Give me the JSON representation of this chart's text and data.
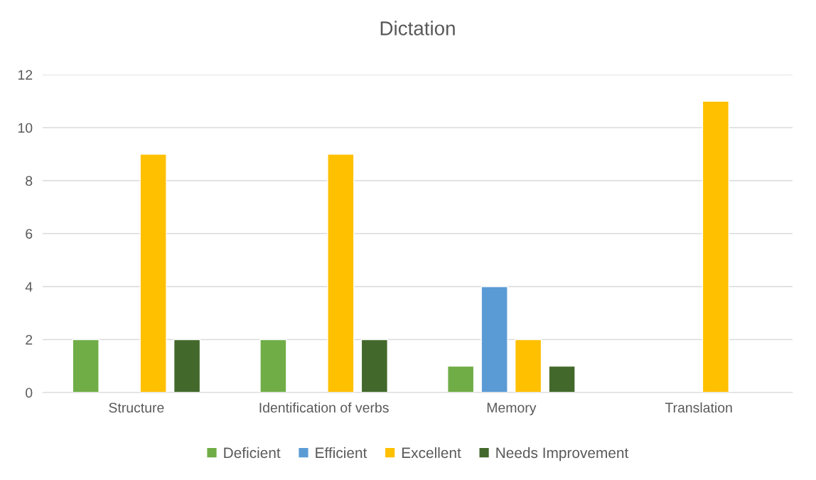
{
  "chart_data": {
    "type": "bar",
    "title": "Dictation",
    "categories": [
      "Structure",
      "Identification of verbs",
      "Memory",
      "Translation"
    ],
    "series": [
      {
        "name": "Deficient",
        "color": "#70ad47",
        "values": [
          2,
          2,
          1,
          null
        ]
      },
      {
        "name": "Efficient",
        "color": "#5b9bd5",
        "values": [
          null,
          null,
          4,
          null
        ]
      },
      {
        "name": "Excellent",
        "color": "#ffc000",
        "values": [
          9,
          9,
          2,
          11
        ]
      },
      {
        "name": "Needs Improvement",
        "color": "#43682b",
        "values": [
          2,
          2,
          1,
          null
        ]
      }
    ],
    "ylim": [
      0,
      12
    ],
    "yticks": [
      0,
      2,
      4,
      6,
      8,
      10,
      12
    ],
    "grid": "y",
    "legend": "bottom"
  }
}
